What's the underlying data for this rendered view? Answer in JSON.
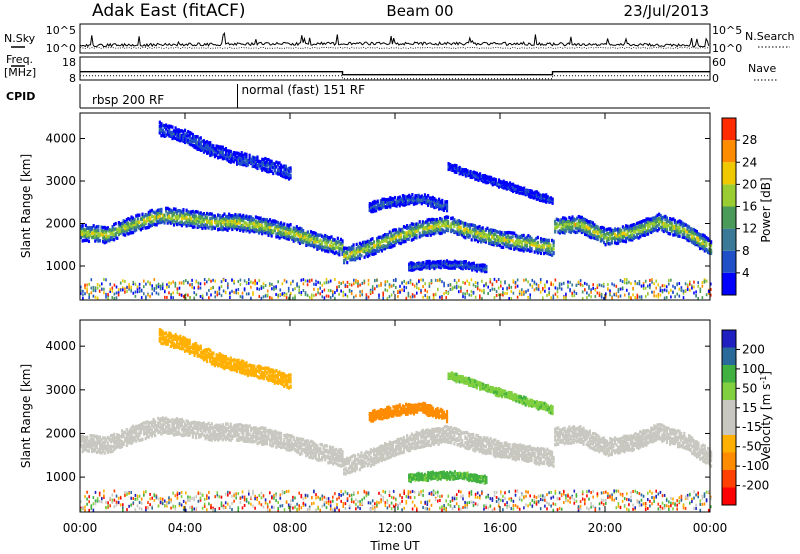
{
  "header": {
    "station": "Adak East (fitACF)",
    "beam": "Beam 00",
    "date": "23/Jul/2013"
  },
  "labels": {
    "nsky": "N.Sky",
    "nsearch": "N.Search",
    "freq": "Freq.",
    "mhz": "[MHz]",
    "nave": "Nave",
    "cpid": "CPID",
    "nsky_ticks": [
      "10^5",
      "10^0"
    ],
    "nsearch_ticks": [
      "10^5",
      "10^0"
    ],
    "freq_ticks": [
      "18",
      "8"
    ],
    "nave_ticks": [
      "60",
      "0"
    ]
  },
  "cpid_segments": [
    {
      "start_hour": 0,
      "end_hour": 6,
      "label": "rbsp 200 RF"
    },
    {
      "start_hour": 6,
      "end_hour": 24,
      "label": "normal (fast) 151 RF"
    }
  ],
  "colors": {
    "power_scale": [
      "#0000ff",
      "#2050c8",
      "#3a7a96",
      "#4a9a5a",
      "#9acd32",
      "#f0c800",
      "#ff8c00",
      "#ff2a00"
    ],
    "velocity_scale": [
      "#ff0000",
      "#ff4000",
      "#ff8c00",
      "#ffb000",
      "#c8c8c0",
      "#c8c8c0",
      "#80d040",
      "#40b040",
      "#2a6a9a",
      "#2020c0"
    ]
  },
  "chart_data": [
    {
      "type": "heatmap",
      "quantity": "power",
      "ylabel": "Slant Range [km]",
      "xlabel": "Time UT",
      "x_ticks": [
        "00:00",
        "04:00",
        "08:00",
        "12:00",
        "16:00",
        "20:00",
        "00:00"
      ],
      "xlim_hours": [
        0,
        24
      ],
      "y_ticks": [
        1000,
        2000,
        3000,
        4000
      ],
      "ylim_km": [
        200,
        4600
      ],
      "colorbar_label": "Power [dB]",
      "colorbar_ticks": [
        4,
        8,
        12,
        16,
        20,
        24,
        28
      ],
      "colorbar_range": [
        0,
        30
      ],
      "bands": [
        {
          "name": "main",
          "t": [
            0,
            1,
            2,
            3,
            4,
            5,
            6,
            7,
            8,
            9,
            10,
            10.01,
            11,
            12,
            13,
            14,
            15,
            16,
            17,
            18,
            18.01,
            19,
            20,
            21,
            22,
            23,
            24
          ],
          "r": [
            1750,
            1700,
            1950,
            2150,
            2100,
            2000,
            2000,
            1900,
            1750,
            1550,
            1400,
            1200,
            1400,
            1650,
            1850,
            1950,
            1750,
            1600,
            1500,
            1400,
            1900,
            1950,
            1650,
            1750,
            2000,
            1800,
            1400
          ],
          "thickness": 320,
          "peak_db": 20
        },
        {
          "name": "high",
          "t": [
            3,
            4,
            5,
            6,
            7,
            8
          ],
          "r": [
            4200,
            4000,
            3700,
            3500,
            3350,
            3150
          ],
          "thickness": 250,
          "peak_db": 6
        },
        {
          "name": "mid",
          "t": [
            11,
            12,
            13,
            14
          ],
          "r": [
            2350,
            2500,
            2550,
            2350
          ],
          "thickness": 180,
          "peak_db": 8
        },
        {
          "name": "low",
          "t": [
            12.5,
            13.5,
            14.5,
            15.5
          ],
          "r": [
            950,
            1000,
            1000,
            900
          ],
          "thickness": 120,
          "peak_db": 8
        },
        {
          "name": "tail",
          "t": [
            14,
            15,
            16,
            17,
            18
          ],
          "r": [
            3300,
            3100,
            2900,
            2700,
            2500
          ],
          "thickness": 120,
          "peak_db": 5
        }
      ]
    },
    {
      "type": "heatmap",
      "quantity": "velocity",
      "ylabel": "Slant Range [km]",
      "xlabel": "Time UT",
      "x_ticks": [
        "00:00",
        "04:00",
        "08:00",
        "12:00",
        "16:00",
        "20:00",
        "00:00"
      ],
      "xlim_hours": [
        0,
        24
      ],
      "y_ticks": [
        1000,
        2000,
        3000,
        4000
      ],
      "ylim_km": [
        200,
        4600
      ],
      "colorbar_label": "Velocity [m s",
      "colorbar_label_sup": "-1",
      "colorbar_label_end": "]",
      "colorbar_ticks": [
        -200,
        -100,
        -50,
        -15,
        15,
        50,
        100,
        200
      ],
      "bands": [
        {
          "name": "main",
          "t": [
            0,
            1,
            2,
            3,
            4,
            5,
            6,
            7,
            8,
            9,
            10,
            10.01,
            11,
            12,
            13,
            14,
            15,
            16,
            17,
            18,
            18.01,
            19,
            20,
            21,
            22,
            23,
            24
          ],
          "r": [
            1750,
            1700,
            1950,
            2150,
            2100,
            2000,
            2000,
            1900,
            1750,
            1550,
            1400,
            1200,
            1400,
            1650,
            1850,
            1950,
            1750,
            1600,
            1500,
            1400,
            1900,
            1950,
            1650,
            1750,
            2000,
            1800,
            1400
          ],
          "thickness": 320,
          "velocity": 0
        },
        {
          "name": "high",
          "t": [
            3,
            4,
            5,
            6,
            7,
            8
          ],
          "r": [
            4200,
            4000,
            3700,
            3500,
            3350,
            3150
          ],
          "thickness": 250,
          "velocity": -30
        },
        {
          "name": "mid",
          "t": [
            11,
            12,
            13,
            14
          ],
          "r": [
            2350,
            2500,
            2550,
            2350
          ],
          "thickness": 180,
          "velocity": -80
        },
        {
          "name": "low",
          "t": [
            12.5,
            13.5,
            14.5,
            15.5
          ],
          "r": [
            950,
            1000,
            1000,
            900
          ],
          "thickness": 120,
          "velocity": 60
        },
        {
          "name": "tail",
          "t": [
            14,
            15,
            16,
            17,
            18
          ],
          "r": [
            3300,
            3100,
            2900,
            2700,
            2500
          ],
          "thickness": 120,
          "velocity": 40
        }
      ]
    }
  ],
  "freq_steps": [
    {
      "start_hour": 0,
      "end_hour": 10,
      "mhz": 11.6
    },
    {
      "start_hour": 10,
      "end_hour": 18,
      "mhz": 10.3
    },
    {
      "start_hour": 18,
      "end_hour": 24,
      "mhz": 11.6
    }
  ]
}
